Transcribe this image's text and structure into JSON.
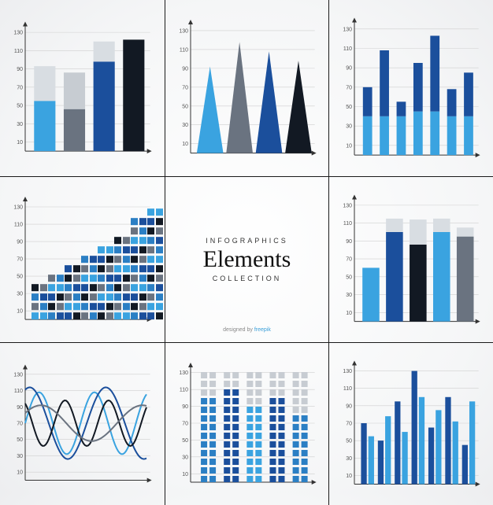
{
  "background_color": "#ffffff",
  "grid_border_color": "#1a1a1a",
  "axis_color": "#333333",
  "gridline_color": "#cfcfcf",
  "yaxis": {
    "ticks": [
      10,
      30,
      50,
      70,
      90,
      110,
      130
    ],
    "fontsize": 7,
    "fontcolor": "#555555",
    "max": 140
  },
  "title_block": {
    "top": "INFOGRAPHICS",
    "main": "Elements",
    "bottom": "COLLECTION",
    "attribution_prefix": "designed by ",
    "attribution_brand": "freepik",
    "top_fontsize": 9,
    "main_fontsize": 30,
    "bottom_fontsize": 9,
    "main_color": "#111111",
    "letter_spacing": 3
  },
  "charts": {
    "c1_stacked_bar": {
      "type": "stacked-bar",
      "bar_width": 0.72,
      "bars": [
        {
          "segments": [
            {
              "h": 55,
              "color": "#3aa3e0"
            },
            {
              "h": 38,
              "color": "#d8dde2"
            }
          ]
        },
        {
          "segments": [
            {
              "h": 46,
              "color": "#6a7380"
            },
            {
              "h": 40,
              "color": "#c7ccd2"
            }
          ]
        },
        {
          "segments": [
            {
              "h": 98,
              "color": "#1b4f9c"
            },
            {
              "h": 22,
              "color": "#d8dde2"
            }
          ]
        },
        {
          "segments": [
            {
              "h": 122,
              "color": "#121923"
            }
          ]
        }
      ]
    },
    "c2_triangles": {
      "type": "triangle-bar",
      "tris": [
        {
          "h": 92,
          "color": "#3aa3e0"
        },
        {
          "h": 118,
          "color": "#6a7380"
        },
        {
          "h": 108,
          "color": "#1b4f9c"
        },
        {
          "h": 98,
          "color": "#121923"
        }
      ],
      "base_width": 0.9
    },
    "c3_grouped_bar": {
      "type": "stacked-thin-bar",
      "bar_width": 0.55,
      "gap": 0.6,
      "bars": [
        {
          "segments": [
            {
              "h": 40,
              "color": "#3aa3e0"
            },
            {
              "h": 30,
              "color": "#1b4f9c"
            }
          ]
        },
        {
          "segments": [
            {
              "h": 40,
              "color": "#3aa3e0"
            },
            {
              "h": 68,
              "color": "#1b4f9c"
            }
          ]
        },
        {
          "segments": [
            {
              "h": 40,
              "color": "#3aa3e0"
            },
            {
              "h": 15,
              "color": "#1b4f9c"
            }
          ]
        },
        {
          "segments": [
            {
              "h": 45,
              "color": "#3aa3e0"
            },
            {
              "h": 50,
              "color": "#1b4f9c"
            }
          ]
        },
        {
          "segments": [
            {
              "h": 45,
              "color": "#3aa3e0"
            },
            {
              "h": 78,
              "color": "#1b4f9c"
            }
          ]
        },
        {
          "segments": [
            {
              "h": 40,
              "color": "#3aa3e0"
            },
            {
              "h": 28,
              "color": "#1b4f9c"
            }
          ]
        },
        {
          "segments": [
            {
              "h": 40,
              "color": "#3aa3e0"
            },
            {
              "h": 45,
              "color": "#1b4f9c"
            }
          ]
        }
      ]
    },
    "c4_dotmatrix": {
      "type": "dot-matrix",
      "cols": 8,
      "square_size": 9,
      "square_gap": 3,
      "heights": [
        4,
        5,
        6,
        7,
        8,
        9,
        11,
        12
      ],
      "palette": [
        "#3aa3e0",
        "#2b7fc4",
        "#1b4f9c",
        "#6a7380",
        "#121923"
      ]
    },
    "c6_overlap_bar": {
      "type": "stacked-bar",
      "bar_width": 0.72,
      "bars": [
        {
          "segments": [
            {
              "h": 60,
              "color": "#3aa3e0"
            }
          ]
        },
        {
          "segments": [
            {
              "h": 100,
              "color": "#1b4f9c"
            },
            {
              "h": 15,
              "color": "#d8dde2"
            }
          ]
        },
        {
          "segments": [
            {
              "h": 86,
              "color": "#121923"
            },
            {
              "h": 28,
              "color": "#d8dde2"
            }
          ]
        },
        {
          "segments": [
            {
              "h": 100,
              "color": "#3aa3e0"
            },
            {
              "h": 15,
              "color": "#d8dde2"
            }
          ]
        },
        {
          "segments": [
            {
              "h": 95,
              "color": "#6a7380"
            },
            {
              "h": 10,
              "color": "#d8dde2"
            }
          ]
        }
      ]
    },
    "c7_waves": {
      "type": "line-wave",
      "line_width": 2,
      "lines": [
        {
          "color": "#3aa3e0",
          "amp": 38,
          "freq": 2.2,
          "phase": 0.0
        },
        {
          "color": "#1b4f9c",
          "amp": 44,
          "freq": 1.6,
          "phase": 1.2
        },
        {
          "color": "#121923",
          "amp": 28,
          "freq": 2.8,
          "phase": 2.1
        },
        {
          "color": "#6a7380",
          "amp": 22,
          "freq": 1.2,
          "phase": 0.6
        }
      ],
      "mid": 70
    },
    "c8_dot_towers": {
      "type": "dot-towers",
      "cols": 5,
      "tower_width": 2,
      "square_size": 8,
      "square_gap": 3,
      "towers": [
        {
          "fill": 10,
          "cap": 3,
          "color": "#2b7fc4",
          "cap_color": "#c7ccd2"
        },
        {
          "fill": 11,
          "cap": 2,
          "color": "#1b4f9c",
          "cap_color": "#c7ccd2"
        },
        {
          "fill": 9,
          "cap": 4,
          "color": "#3aa3e0",
          "cap_color": "#c7ccd2"
        },
        {
          "fill": 10,
          "cap": 3,
          "color": "#1b4f9c",
          "cap_color": "#c7ccd2"
        },
        {
          "fill": 8,
          "cap": 5,
          "color": "#2b7fc4",
          "cap_color": "#c7ccd2"
        }
      ]
    },
    "c9_clustered": {
      "type": "clustered-bar",
      "groups": 7,
      "bar_width": 0.34,
      "series": [
        {
          "color": "#1b4f9c",
          "values": [
            70,
            50,
            95,
            130,
            65,
            100,
            45
          ]
        },
        {
          "color": "#3aa3e0",
          "values": [
            55,
            78,
            60,
            100,
            85,
            72,
            95
          ]
        }
      ]
    }
  }
}
